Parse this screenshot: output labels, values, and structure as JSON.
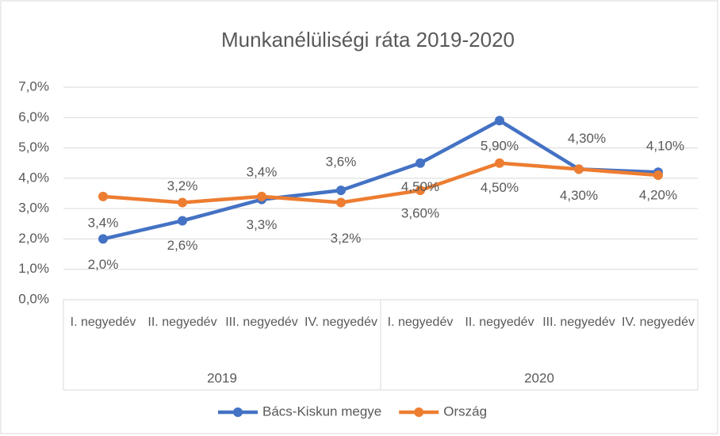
{
  "chart_data": {
    "type": "line",
    "title": "Munkanélüliségi ráta 2019-2020",
    "categories": [
      "I. negyedév",
      "II. negyedév",
      "III. negyedév",
      "IV. negyedév",
      "I. negyedév",
      "II. negyedév",
      "III. negyedév",
      "IV. negyedév"
    ],
    "groups": [
      "2019",
      "2020"
    ],
    "series": [
      {
        "name": "Bács-Kiskun megye",
        "color": "#4472c4",
        "values": [
          2.0,
          2.6,
          3.3,
          3.6,
          4.5,
          5.9,
          4.3,
          4.2
        ],
        "value_labels": [
          "2,0%",
          "2,6%",
          "3,3%",
          "3,6%",
          "4,50%",
          "5,90%",
          "4,30%",
          "4,20%"
        ]
      },
      {
        "name": "Ország",
        "color": "#ed7d31",
        "values": [
          3.4,
          3.2,
          3.4,
          3.2,
          3.6,
          4.5,
          4.3,
          4.1
        ],
        "value_labels": [
          "3,4%",
          "3,2%",
          "3,4%",
          "3,2%",
          "3,60%",
          "4,50%",
          "4,30%",
          "4,10%"
        ]
      }
    ],
    "ylim": [
      0,
      7
    ],
    "yticks": [
      {
        "value": 0,
        "label": "0,0%"
      },
      {
        "value": 1,
        "label": "1,0%"
      },
      {
        "value": 2,
        "label": "2,0%"
      },
      {
        "value": 3,
        "label": "3,0%"
      },
      {
        "value": 4,
        "label": "4,0%"
      },
      {
        "value": 5,
        "label": "5,0%"
      },
      {
        "value": 6,
        "label": "6,0%"
      },
      {
        "value": 7,
        "label": "7,0%"
      }
    ],
    "grid": true,
    "legend": "bottom"
  }
}
